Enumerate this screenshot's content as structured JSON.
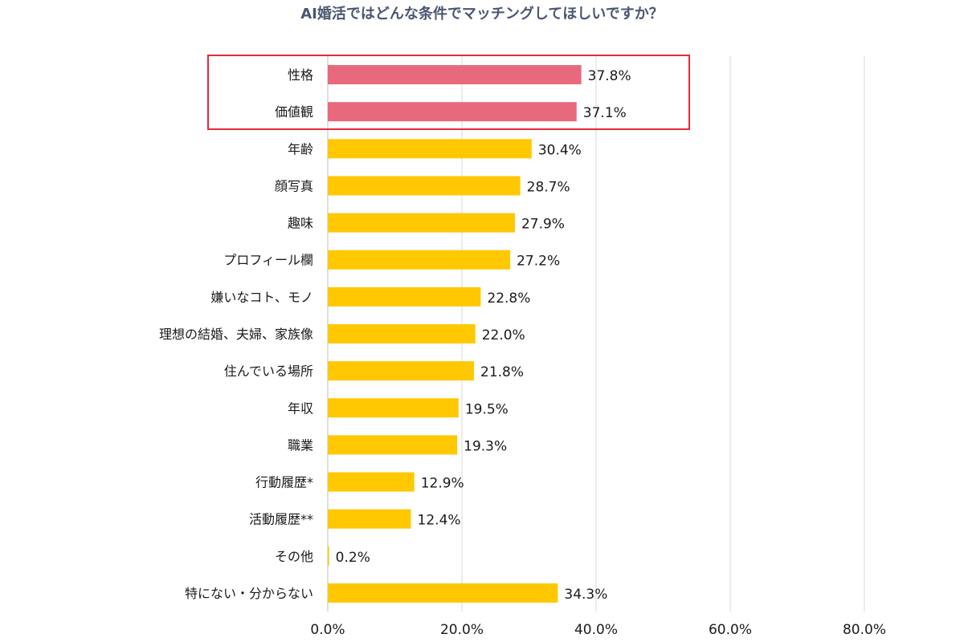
{
  "chart_data": {
    "type": "bar",
    "orientation": "horizontal",
    "title": "AI婚活ではどんな条件でマッチングしてほしいですか？",
    "categories": [
      "性格",
      "価値観",
      "年齢",
      "顔写真",
      "趣味",
      "プロフィール欄",
      "嫌いなコト、モノ",
      "理想の結婚、夫婦、家族像",
      "住んでいる場所",
      "年収",
      "職業",
      "行動履歴*",
      "活動履歴**",
      "その他",
      "特にない・分からない"
    ],
    "values": [
      37.8,
      37.1,
      30.4,
      28.7,
      27.9,
      27.2,
      22.8,
      22.0,
      21.8,
      19.5,
      19.3,
      12.9,
      12.4,
      0.2,
      34.3
    ],
    "value_labels": [
      "37.8%",
      "37.1%",
      "30.4%",
      "28.7%",
      "27.9%",
      "27.2%",
      "22.8%",
      "22.0%",
      "21.8%",
      "19.5%",
      "19.3%",
      "12.9%",
      "12.4%",
      "0.2%",
      "34.3%"
    ],
    "highlighted": [
      "性格",
      "価値観"
    ],
    "xlim": [
      0,
      80
    ],
    "xticks": [
      0,
      20,
      40,
      60,
      80
    ],
    "xtick_labels": [
      "0.0%",
      "20.0%",
      "40.0%",
      "60.0%",
      "80.0%"
    ],
    "grid": true,
    "colors": {
      "highlight": "#e8697d",
      "default": "#ffc800",
      "box": "#e8283a",
      "grid": "#d9d9d9"
    }
  }
}
